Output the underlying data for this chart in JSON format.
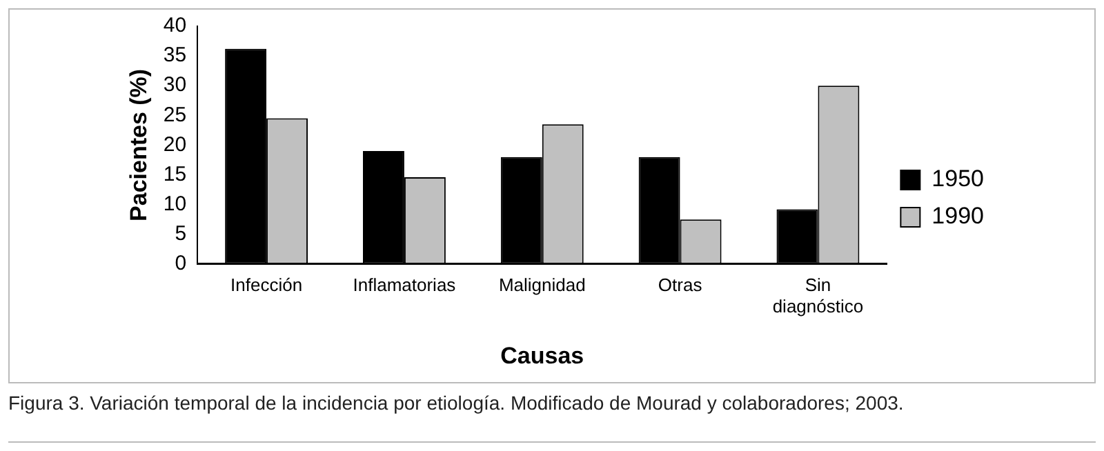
{
  "chart_data": {
    "type": "bar",
    "xlabel": "Causas",
    "ylabel": "Pacientes (%)",
    "categories": [
      "Infección",
      "Inflamatorias",
      "Malignidad",
      "Otras",
      "Sin diagnóstico"
    ],
    "series": [
      {
        "name": "1950",
        "color": "#000000",
        "values": [
          36.2,
          19,
          18,
          18,
          9.2
        ]
      },
      {
        "name": "1990",
        "color": "#c0c0c0",
        "values": [
          24.5,
          14.6,
          23.5,
          7.5,
          30
        ]
      }
    ],
    "ylim": [
      0,
      40
    ],
    "yticks": [
      0,
      5,
      10,
      15,
      20,
      25,
      30,
      35,
      40
    ],
    "grid": false,
    "legend": "right",
    "annotations": [
      "Figura 3. Variación temporal de la incidencia por etiología. Modificado de Mourad y colaboradores; 2003."
    ]
  }
}
